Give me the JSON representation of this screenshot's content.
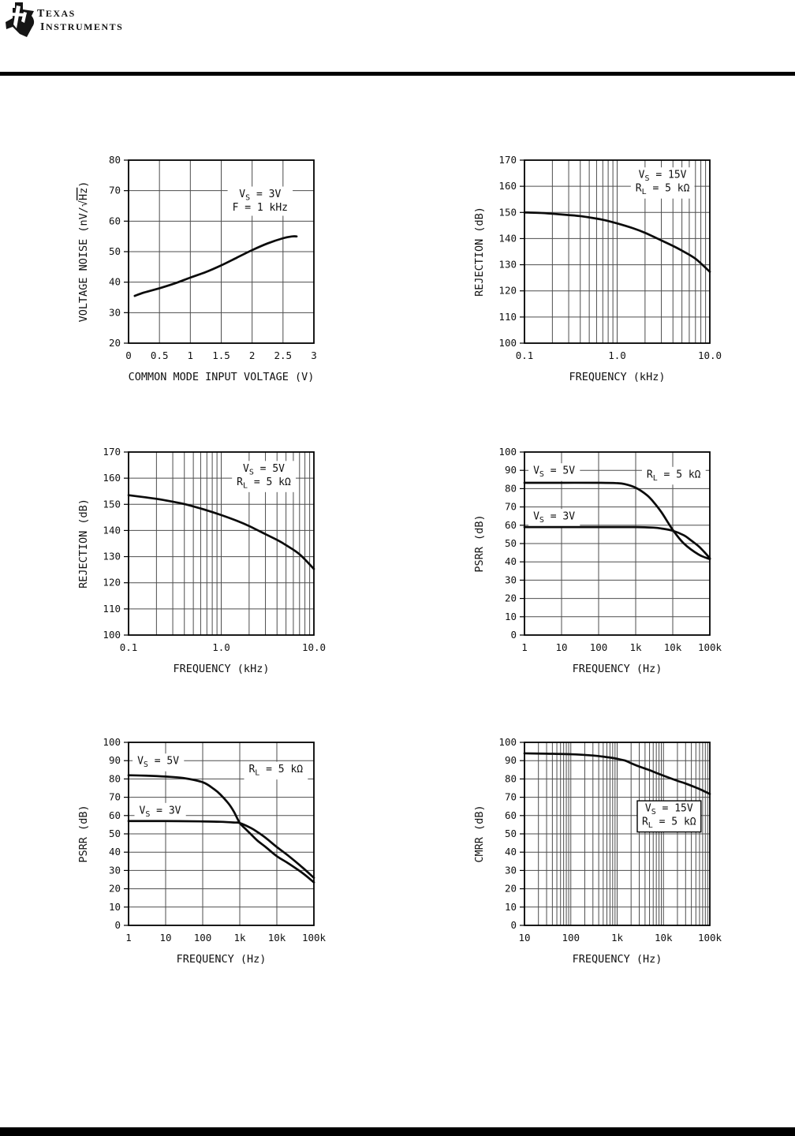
{
  "header": {
    "brand_line1": "Texas",
    "brand_line2": "Instruments",
    "logo": "ti-texas-bug"
  },
  "colors": {
    "background": "#ffffff",
    "ink": "#0b0b0b",
    "grid": "#4d4d4d",
    "border": "#000000"
  },
  "chart_data": [
    {
      "name": "voltage-noise-vs-common-mode-input-voltage",
      "type": "line",
      "xlabel": "COMMON MODE INPUT VOLTAGE (V)",
      "ylabel": "VOLTAGE NOISE (nV/√Hz)",
      "ylabel_parts": [
        {
          "t": "VOLTAGE NOISE (nV/"
        },
        {
          "t": "√"
        },
        {
          "t": "Hz",
          "overline": true
        },
        {
          "t": ")"
        }
      ],
      "x": {
        "scale": "linear",
        "min": 0,
        "max": 3,
        "minor_grid": false,
        "ticks": [
          {
            "v": 0,
            "l": "0"
          },
          {
            "v": 0.5,
            "l": "0.5"
          },
          {
            "v": 1,
            "l": "1"
          },
          {
            "v": 1.5,
            "l": "1.5"
          },
          {
            "v": 2,
            "l": "2"
          },
          {
            "v": 2.5,
            "l": "2.5"
          },
          {
            "v": 3,
            "l": "3"
          }
        ]
      },
      "y": {
        "min": 20,
        "max": 80,
        "step": 10
      },
      "annotations": [
        {
          "cx": 0.71,
          "cy": 0.22,
          "box": false,
          "lines": [
            [
              {
                "t": "V"
              },
              {
                "t": "S",
                "sub": true
              },
              {
                "t": " = 3V"
              }
            ],
            [
              {
                "t": "F = 1 kHz"
              }
            ]
          ]
        }
      ],
      "series": [
        {
          "name": "vs-3v",
          "points": [
            [
              0.1,
              35.5
            ],
            [
              0.25,
              36.6
            ],
            [
              0.5,
              38
            ],
            [
              0.75,
              39.6
            ],
            [
              1,
              41.5
            ],
            [
              1.25,
              43.3
            ],
            [
              1.5,
              45.5
            ],
            [
              1.75,
              48
            ],
            [
              2,
              50.5
            ],
            [
              2.25,
              52.7
            ],
            [
              2.5,
              54.4
            ],
            [
              2.65,
              55
            ],
            [
              2.72,
              55
            ]
          ]
        }
      ]
    },
    {
      "name": "rejection-vs-frequency-15v",
      "type": "line",
      "xlabel": "FREQUENCY (kHz)",
      "ylabel": "REJECTION (dB)",
      "x": {
        "scale": "log",
        "min": 0.1,
        "max": 10,
        "minor_grid": true,
        "ticks": [
          {
            "v": 0.1,
            "l": "0.1"
          },
          {
            "v": 1,
            "l": "1.0"
          },
          {
            "v": 10,
            "l": "10.0"
          }
        ]
      },
      "y": {
        "min": 100,
        "max": 170,
        "step": 10
      },
      "annotations": [
        {
          "cx": 0.745,
          "cy": 0.115,
          "box": false,
          "lines": [
            [
              {
                "t": "V"
              },
              {
                "t": "S",
                "sub": true
              },
              {
                "t": " = 15V"
              }
            ],
            [
              {
                "t": "R"
              },
              {
                "t": "L",
                "sub": true
              },
              {
                "t": " = 5 kΩ"
              }
            ]
          ]
        }
      ],
      "series": [
        {
          "name": "vs-15v",
          "points": [
            [
              0.1,
              150
            ],
            [
              0.15,
              149.8
            ],
            [
              0.2,
              149.5
            ],
            [
              0.3,
              149
            ],
            [
              0.4,
              148.6
            ],
            [
              0.5,
              148.1
            ],
            [
              0.7,
              147.2
            ],
            [
              1,
              145.8
            ],
            [
              1.5,
              143.9
            ],
            [
              2,
              142.2
            ],
            [
              3,
              139.3
            ],
            [
              4,
              137.2
            ],
            [
              5,
              135.4
            ],
            [
              7,
              132.3
            ],
            [
              10,
              127.3
            ]
          ]
        }
      ]
    },
    {
      "name": "rejection-vs-frequency-5v",
      "type": "line",
      "xlabel": "FREQUENCY (kHz)",
      "ylabel": "REJECTION (dB)",
      "x": {
        "scale": "log",
        "min": 0.1,
        "max": 10,
        "minor_grid": true,
        "ticks": [
          {
            "v": 0.1,
            "l": "0.1"
          },
          {
            "v": 1,
            "l": "1.0"
          },
          {
            "v": 10,
            "l": "10.0"
          }
        ]
      },
      "y": {
        "min": 100,
        "max": 170,
        "step": 10
      },
      "annotations": [
        {
          "cx": 0.73,
          "cy": 0.124,
          "box": false,
          "lines": [
            [
              {
                "t": "V"
              },
              {
                "t": "S",
                "sub": true
              },
              {
                "t": " = 5V"
              }
            ],
            [
              {
                "t": "R"
              },
              {
                "t": "L",
                "sub": true
              },
              {
                "t": " = 5 kΩ"
              }
            ]
          ]
        }
      ],
      "series": [
        {
          "name": "vs-5v",
          "points": [
            [
              0.1,
              153.5
            ],
            [
              0.15,
              152.7
            ],
            [
              0.2,
              152.1
            ],
            [
              0.3,
              151
            ],
            [
              0.4,
              150.1
            ],
            [
              0.5,
              149.2
            ],
            [
              0.7,
              147.7
            ],
            [
              1,
              145.9
            ],
            [
              1.5,
              143.6
            ],
            [
              2,
              141.7
            ],
            [
              3,
              138.6
            ],
            [
              4,
              136.4
            ],
            [
              5,
              134.4
            ],
            [
              7,
              130.9
            ],
            [
              10,
              125.3
            ]
          ]
        }
      ]
    },
    {
      "name": "psrr-vs-frequency-a",
      "type": "line",
      "xlabel": "FREQUENCY (Hz)",
      "ylabel": "PSRR (dB)",
      "x": {
        "scale": "log",
        "min": 1,
        "max": 100000,
        "minor_grid": false,
        "ticks": [
          {
            "v": 1,
            "l": "1"
          },
          {
            "v": 10,
            "l": "10"
          },
          {
            "v": 100,
            "l": "100"
          },
          {
            "v": 1000,
            "l": "1k"
          },
          {
            "v": 10000,
            "l": "10k"
          },
          {
            "v": 100000,
            "l": "100k"
          }
        ]
      },
      "y": {
        "min": 0,
        "max": 100,
        "step": 10
      },
      "annotations": [
        {
          "cx": 0.16,
          "cy": 0.1,
          "box": false,
          "lines": [
            [
              {
                "t": "V"
              },
              {
                "t": "S",
                "sub": true
              },
              {
                "t": " = 5V"
              }
            ]
          ]
        },
        {
          "cx": 0.805,
          "cy": 0.12,
          "box": false,
          "lines": [
            [
              {
                "t": "R"
              },
              {
                "t": "L",
                "sub": true
              },
              {
                "t": " = 5 kΩ"
              }
            ]
          ]
        },
        {
          "cx": 0.16,
          "cy": 0.35,
          "box": false,
          "lines": [
            [
              {
                "t": "V"
              },
              {
                "t": "S",
                "sub": true
              },
              {
                "t": " = 3V"
              }
            ]
          ]
        }
      ],
      "series": [
        {
          "name": "vs-5v",
          "points": [
            [
              1,
              83.2
            ],
            [
              10,
              83.2
            ],
            [
              100,
              83.2
            ],
            [
              300,
              83
            ],
            [
              500,
              82.5
            ],
            [
              1000,
              80.5
            ],
            [
              2000,
              76.5
            ],
            [
              3000,
              72.8
            ],
            [
              5000,
              67
            ],
            [
              10000,
              57.5
            ],
            [
              20000,
              50
            ],
            [
              50000,
              44
            ],
            [
              100000,
              41.5
            ]
          ]
        },
        {
          "name": "vs-3v",
          "points": [
            [
              1,
              59
            ],
            [
              10,
              59
            ],
            [
              100,
              59
            ],
            [
              1000,
              59
            ],
            [
              3000,
              58.7
            ],
            [
              5000,
              58.2
            ],
            [
              10000,
              57
            ],
            [
              20000,
              54.5
            ],
            [
              30000,
              52
            ],
            [
              50000,
              48.5
            ],
            [
              70000,
              45.5
            ],
            [
              100000,
              42
            ]
          ]
        }
      ]
    },
    {
      "name": "psrr-vs-frequency-b",
      "type": "line",
      "xlabel": "FREQUENCY (Hz)",
      "ylabel": "PSRR (dB)",
      "x": {
        "scale": "log",
        "min": 1,
        "max": 100000,
        "minor_grid": false,
        "ticks": [
          {
            "v": 1,
            "l": "1"
          },
          {
            "v": 10,
            "l": "10"
          },
          {
            "v": 100,
            "l": "100"
          },
          {
            "v": 1000,
            "l": "1k"
          },
          {
            "v": 10000,
            "l": "10k"
          },
          {
            "v": 100000,
            "l": "100k"
          }
        ]
      },
      "y": {
        "min": 0,
        "max": 100,
        "step": 10
      },
      "annotations": [
        {
          "cx": 0.16,
          "cy": 0.1,
          "box": false,
          "lines": [
            [
              {
                "t": "V"
              },
              {
                "t": "S",
                "sub": true
              },
              {
                "t": " = 5V"
              }
            ]
          ]
        },
        {
          "cx": 0.795,
          "cy": 0.145,
          "box": false,
          "lines": [
            [
              {
                "t": "R"
              },
              {
                "t": "L",
                "sub": true
              },
              {
                "t": " = 5 kΩ"
              }
            ]
          ]
        },
        {
          "cx": 0.17,
          "cy": 0.37,
          "box": false,
          "lines": [
            [
              {
                "t": "V"
              },
              {
                "t": "S",
                "sub": true
              },
              {
                "t": " = 3V"
              }
            ]
          ]
        }
      ],
      "series": [
        {
          "name": "vs-5v",
          "points": [
            [
              1,
              82
            ],
            [
              3,
              81.8
            ],
            [
              10,
              81.3
            ],
            [
              30,
              80.5
            ],
            [
              100,
              78.2
            ],
            [
              200,
              74.5
            ],
            [
              300,
              71.5
            ],
            [
              500,
              66.5
            ],
            [
              700,
              62
            ],
            [
              1000,
              56
            ],
            [
              1500,
              52.3
            ],
            [
              2000,
              49.8
            ],
            [
              3000,
              46.3
            ],
            [
              5000,
              42.8
            ],
            [
              10000,
              37.8
            ],
            [
              20000,
              34
            ],
            [
              50000,
              28.5
            ],
            [
              100000,
              23.5
            ]
          ]
        },
        {
          "name": "vs-3v",
          "points": [
            [
              1,
              57
            ],
            [
              10,
              57
            ],
            [
              100,
              56.8
            ],
            [
              300,
              56.6
            ],
            [
              700,
              56.2
            ],
            [
              1000,
              55.9
            ],
            [
              2000,
              53.2
            ],
            [
              3000,
              51
            ],
            [
              5000,
              47.8
            ],
            [
              10000,
              42.8
            ],
            [
              20000,
              38.2
            ],
            [
              50000,
              31.5
            ],
            [
              100000,
              26
            ]
          ]
        }
      ]
    },
    {
      "name": "cmrr-vs-frequency",
      "type": "line",
      "xlabel": "FREQUENCY (Hz)",
      "ylabel": "CMRR (dB)",
      "x": {
        "scale": "log",
        "min": 10,
        "max": 100000,
        "minor_grid": true,
        "ticks": [
          {
            "v": 10,
            "l": "10"
          },
          {
            "v": 100,
            "l": "100"
          },
          {
            "v": 1000,
            "l": "1k"
          },
          {
            "v": 10000,
            "l": "10k"
          },
          {
            "v": 100000,
            "l": "100k"
          }
        ]
      },
      "y": {
        "min": 0,
        "max": 100,
        "step": 10
      },
      "annotations": [
        {
          "cx": 0.78,
          "cy": 0.395,
          "box": true,
          "lines": [
            [
              {
                "t": "V"
              },
              {
                "t": "S",
                "sub": true
              },
              {
                "t": " = 15V"
              }
            ],
            [
              {
                "t": "R"
              },
              {
                "t": "L",
                "sub": true
              },
              {
                "t": " = 5 kΩ"
              }
            ]
          ]
        }
      ],
      "series": [
        {
          "name": "vs-15v",
          "points": [
            [
              10,
              94
            ],
            [
              30,
              93.8
            ],
            [
              100,
              93.5
            ],
            [
              300,
              92.8
            ],
            [
              500,
              92.2
            ],
            [
              700,
              91.7
            ],
            [
              1000,
              91
            ],
            [
              1500,
              90
            ],
            [
              2000,
              88.6
            ],
            [
              3000,
              86.8
            ],
            [
              5000,
              84.8
            ],
            [
              7000,
              83.3
            ],
            [
              10000,
              81.8
            ],
            [
              20000,
              79
            ],
            [
              30000,
              77.5
            ],
            [
              50000,
              75.3
            ],
            [
              70000,
              73.7
            ],
            [
              100000,
              71.8
            ]
          ]
        }
      ]
    }
  ]
}
